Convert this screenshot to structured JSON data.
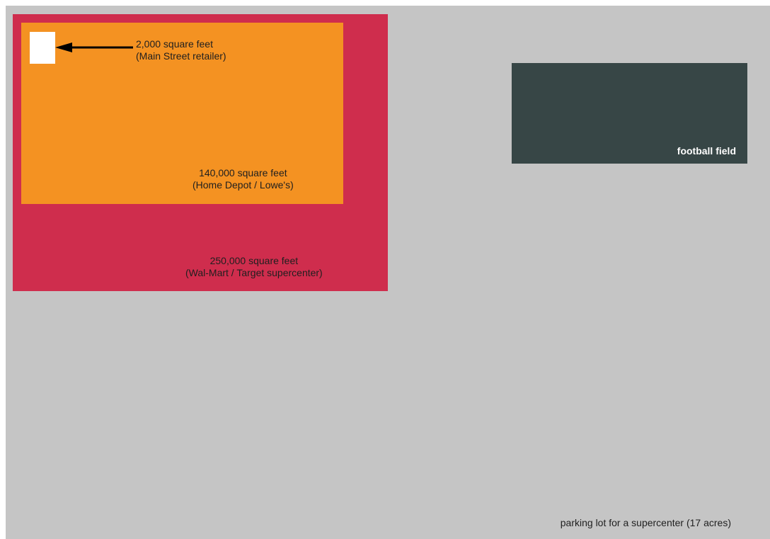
{
  "colors": {
    "parking_lot": "#c5c5c5",
    "supercenter": "#cf2d4d",
    "home_depot": "#f49222",
    "main_street": "#ffffff",
    "football_field": "#374646"
  },
  "blocks": {
    "main_street": {
      "size": "2,000 square feet",
      "name": "(Main Street retailer)"
    },
    "home_depot": {
      "size": "140,000 square feet",
      "name": "(Home Depot / Lowe's)"
    },
    "supercenter": {
      "size": "250,000 square feet",
      "name": "(Wal-Mart / Target supercenter)"
    },
    "football_field": {
      "label": "football field"
    },
    "parking_lot": {
      "label": "parking lot for a supercenter (17 acres)"
    }
  }
}
